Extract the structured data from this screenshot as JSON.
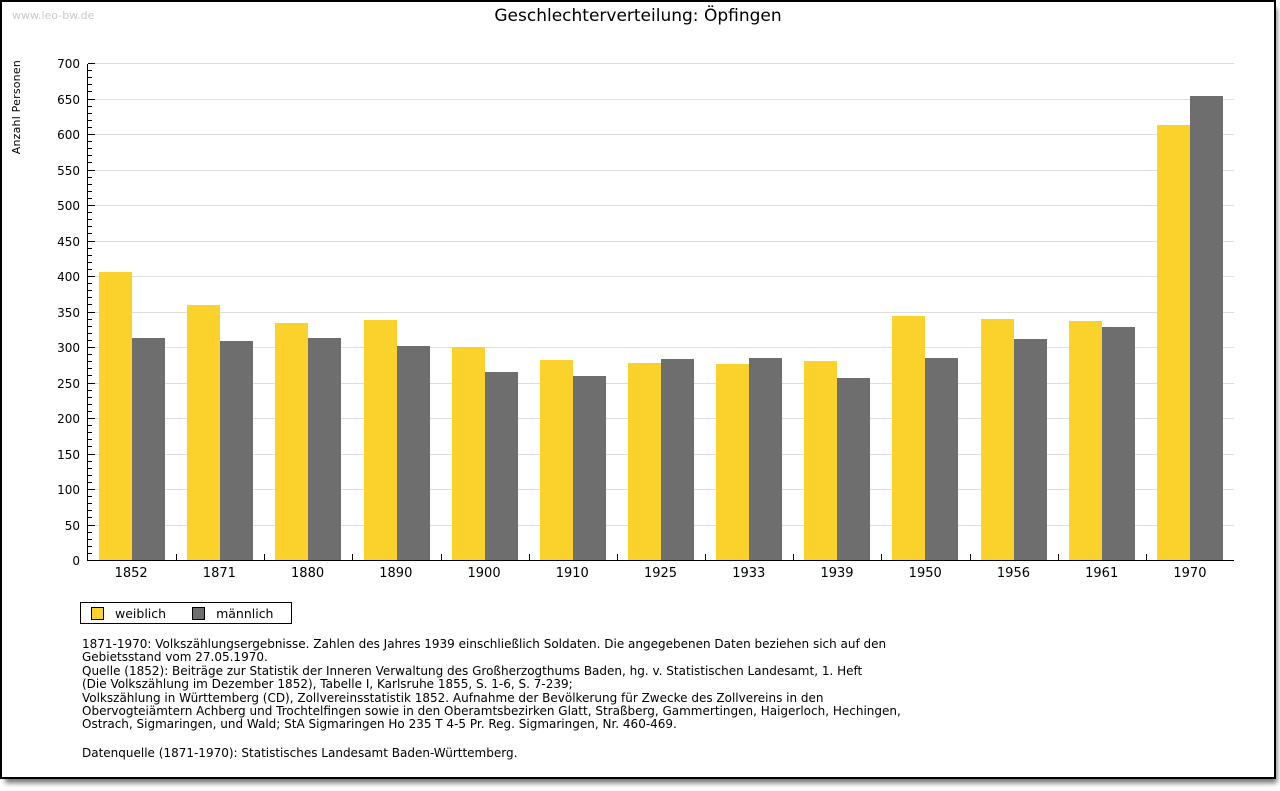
{
  "watermark": "www.leo-bw.de",
  "chart_data": {
    "type": "bar",
    "title": "Geschlechterverteilung: Öpfingen",
    "xlabel": "",
    "ylabel": "Anzahl Personen",
    "ylim": [
      0,
      700
    ],
    "ytick_step": 50,
    "yminor_step": 10,
    "yticks": [
      0,
      50,
      100,
      150,
      200,
      250,
      300,
      350,
      400,
      450,
      500,
      550,
      600,
      650,
      700
    ],
    "grid": true,
    "legend_position": "bottom-left",
    "categories": [
      "1852",
      "1871",
      "1880",
      "1890",
      "1900",
      "1910",
      "1925",
      "1933",
      "1939",
      "1950",
      "1956",
      "1961",
      "1970"
    ],
    "series": [
      {
        "name": "weiblich",
        "color": "#FBD22B",
        "values": [
          406,
          359,
          334,
          338,
          300,
          282,
          277,
          276,
          281,
          343,
          339,
          336,
          613
        ]
      },
      {
        "name": "männlich",
        "color": "#6E6E6E",
        "values": [
          312,
          309,
          312,
          301,
          265,
          259,
          283,
          284,
          257,
          284,
          311,
          328,
          653
        ]
      }
    ]
  },
  "legend": {
    "items": [
      {
        "label": "weiblich",
        "color": "#FBD22B"
      },
      {
        "label": "männlich",
        "color": "#6E6E6E"
      }
    ]
  },
  "footer": {
    "lines": [
      "1871-1970: Volkszählungsergebnisse. Zahlen des Jahres 1939 einschließlich Soldaten. Die angegebenen Daten beziehen sich auf den",
      "Gebietsstand vom 27.05.1970.",
      "Quelle (1852): Beiträge zur Statistik der Inneren Verwaltung des Großherzogthums Baden, hg. v. Statistischen Landesamt, 1. Heft",
      "(Die Volkszählung im Dezember 1852), Tabelle I, Karlsruhe 1855, S. 1-6, S. 7-239;",
      "Volkszählung in Württemberg (CD), Zollvereinsstatistik 1852. Aufnahme der Bevölkerung für Zwecke des Zollvereins in den",
      "Obervogteiämtern Achberg und Trochtelfingen sowie in den Oberamtsbezirken Glatt, Straßberg, Gammertingen, Haigerloch, Hechingen,",
      "Ostrach, Sigmaringen, und Wald; StA Sigmaringen Ho 235 T 4-5 Pr. Reg. Sigmaringen, Nr. 460-469."
    ],
    "datasource": "Datenquelle (1871-1970): Statistisches Landesamt Baden-Württemberg."
  },
  "colors": {
    "weiblich": "#FBD22B",
    "männlich": "#6E6E6E",
    "gridline": "#dddddd",
    "watermark": "#c9c9c9",
    "axis": "#000000",
    "page_border": "#000000"
  }
}
